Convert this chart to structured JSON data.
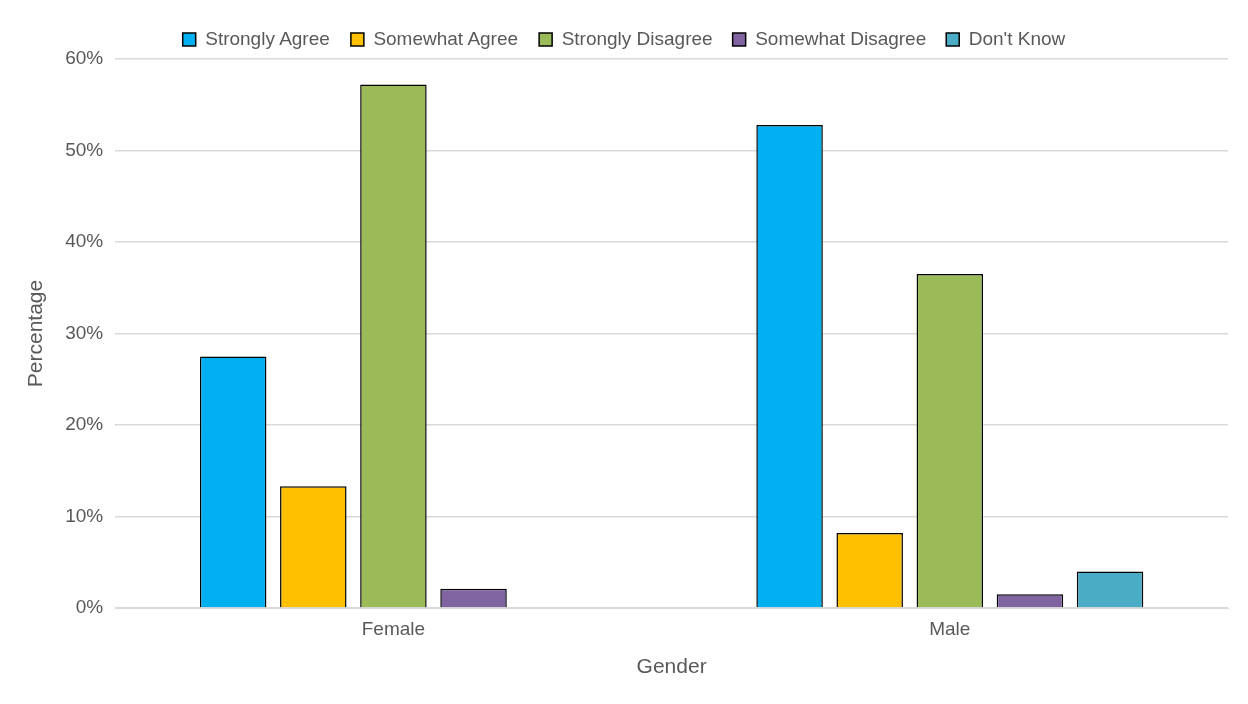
{
  "chart_data": {
    "type": "bar",
    "xlabel": "Gender",
    "ylabel": "Percentage",
    "categories": [
      "Female",
      "Male"
    ],
    "series": [
      {
        "name": "Strongly Agree",
        "color": "#00b0f0",
        "values": [
          27.5,
          52.8
        ]
      },
      {
        "name": "Somewhat Agree",
        "color": "#ffc000",
        "values": [
          13.3,
          8.2
        ]
      },
      {
        "name": "Strongly Disagree",
        "color": "#9bbb59",
        "values": [
          57.2,
          36.5
        ]
      },
      {
        "name": "Somewhat Disagree",
        "color": "#8064a2",
        "values": [
          2.1,
          1.5
        ]
      },
      {
        "name": "Don't Know",
        "color": "#4bacc6",
        "values": [
          null,
          4.0
        ]
      }
    ],
    "ylim": [
      0,
      60
    ],
    "yticks": [
      {
        "value": 0,
        "label": "0%"
      },
      {
        "value": 10,
        "label": "10%"
      },
      {
        "value": 20,
        "label": "20%"
      },
      {
        "value": 30,
        "label": "30%"
      },
      {
        "value": 40,
        "label": "40%"
      },
      {
        "value": 50,
        "label": "50%"
      },
      {
        "value": 60,
        "label": "60%"
      }
    ],
    "grid": "y",
    "legend": "top"
  }
}
